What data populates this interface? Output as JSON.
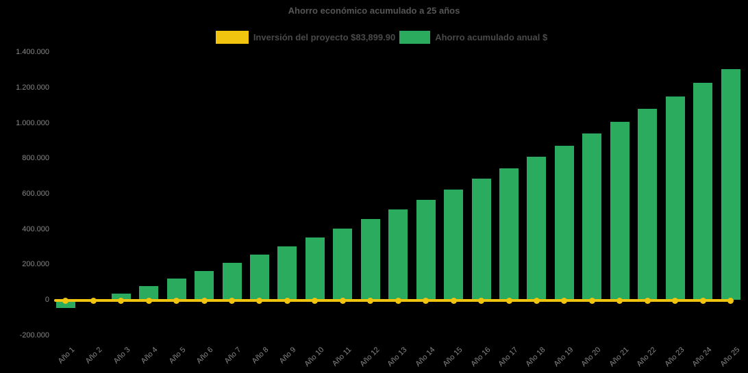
{
  "title": "Ahorro económico acumulado a 25 años",
  "legend": {
    "items": [
      {
        "label": "Inversión del proyecto $83,899.90",
        "color": "#f1c40f",
        "series_type": "line"
      },
      {
        "label": "Ahorro acumulado anual $",
        "color": "#2bab5d",
        "series_type": "bar"
      }
    ]
  },
  "colors": {
    "background": "#000000",
    "bar_green": "#2bab5d",
    "line_yellow": "#f1c40f",
    "title_text": "#565656",
    "legend_text": "#4a4a4a",
    "axis_text": "#878787"
  },
  "chart_data": {
    "type": "bar",
    "title": "Ahorro económico acumulado a 25 años",
    "xlabel": "",
    "ylabel": "",
    "grid": false,
    "legend_position": "top-center",
    "ylim": [
      -200000,
      1400000
    ],
    "ytick_step": 200000,
    "ytick_values": [
      1400000,
      1200000,
      1000000,
      800000,
      600000,
      400000,
      200000,
      0,
      -200000
    ],
    "ytick_labels": [
      "1.400.000",
      "1.200.000",
      "1.000.000",
      "800.000",
      "600.000",
      "400.000",
      "200.000",
      "0",
      "-200.000"
    ],
    "categories": [
      "Año 1",
      "Año 2",
      "Año 3",
      "Año 4",
      "Año 5",
      "Año 6",
      "Año 7",
      "Año 8",
      "Año 9",
      "Año 10",
      "Año 11",
      "Año 12",
      "Año 13",
      "Año 14",
      "Año 15",
      "Año 16",
      "Año 17",
      "Año 18",
      "Año 19",
      "Año 20",
      "Año 21",
      "Año 22",
      "Año 23",
      "Año 24",
      "Año 25"
    ],
    "series": [
      {
        "name": "Ahorro acumulado anual $",
        "type": "bar",
        "color": "#2bab5d",
        "values": [
          -45500,
          -5900,
          34400,
          75900,
          118700,
          162800,
          208200,
          255000,
          303100,
          352800,
          403900,
          456500,
          510700,
          566500,
          624100,
          683300,
          744300,
          807200,
          871900,
          938600,
          1007200,
          1078000,
          1150800,
          1225900,
          1303200
        ]
      },
      {
        "name": "Inversión del proyecto $83,899.90",
        "type": "line",
        "color": "#f1c40f",
        "marker": "circle",
        "values": [
          0,
          0,
          0,
          0,
          0,
          0,
          0,
          0,
          0,
          0,
          0,
          0,
          0,
          0,
          0,
          0,
          0,
          0,
          0,
          0,
          0,
          0,
          0,
          0,
          0
        ]
      }
    ]
  }
}
